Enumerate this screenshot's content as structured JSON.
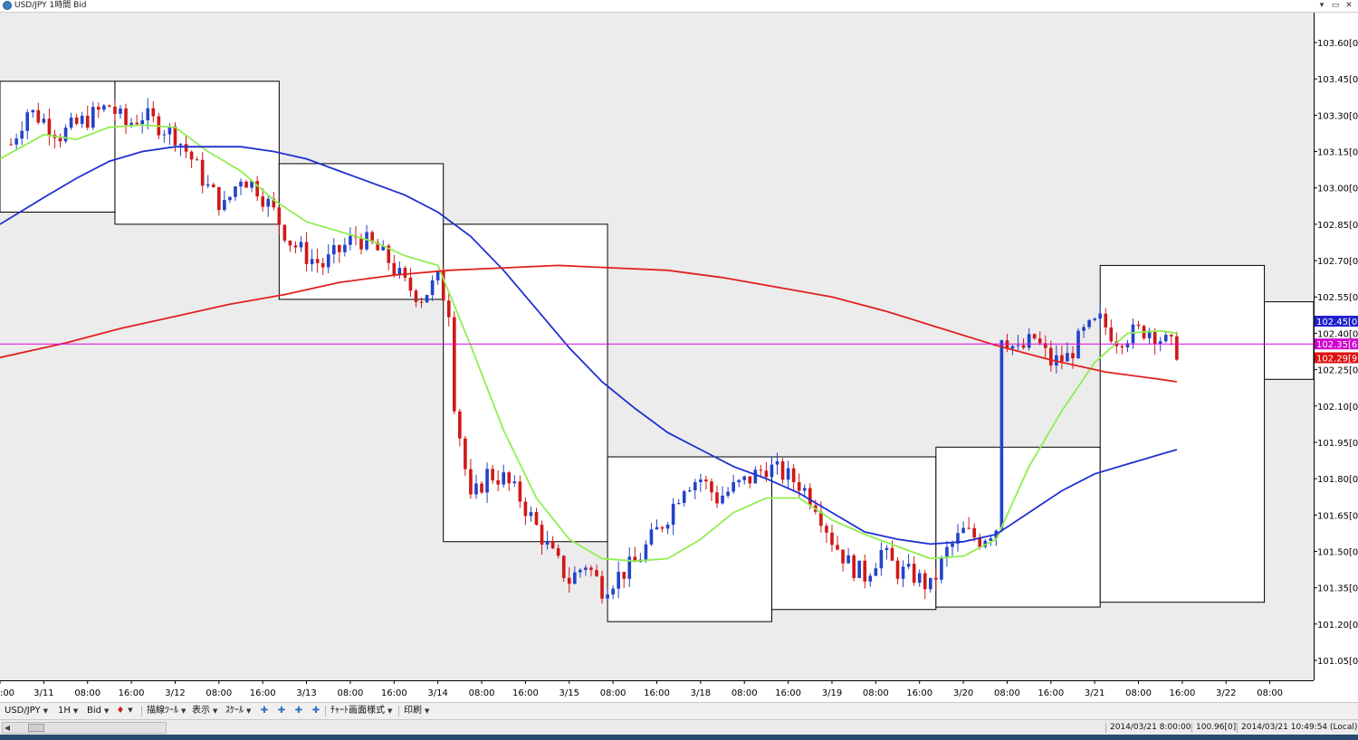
{
  "window": {
    "title": "USD/JPY 1時間 Bid",
    "controls": {
      "minimize": "▾",
      "restore": "▭",
      "close": "✕"
    }
  },
  "colors": {
    "up_candle": "#2343c8",
    "down_candle": "#d01818",
    "ma_fast": "#90ee50",
    "ma_mid": "#1f2fd0",
    "ma_long": "#e02020",
    "price_line": "#e000e0",
    "box": "#000000",
    "background": "#ececec"
  },
  "chart_data": {
    "type": "candlestick",
    "symbol": "USD/JPY",
    "timeframe": "1H",
    "price_type": "Bid",
    "y_axis": {
      "ticks": [
        "103.60[0]",
        "103.45[0]",
        "103.30[0]",
        "103.15[0]",
        "103.00[0]",
        "102.85[0]",
        "102.70[0]",
        "102.55[0]",
        "102.40[0]",
        "102.25[0]",
        "102.10[0]",
        "101.95[0]",
        "101.80[0]",
        "101.65[0]",
        "101.50[0]",
        "101.35[0]",
        "101.20[0]",
        "101.05[0]"
      ],
      "range": [
        101.0,
        103.65
      ]
    },
    "x_axis": {
      "ticks": [
        ":00",
        "3/11",
        "08:00",
        "16:00",
        "3/12",
        "08:00",
        "16:00",
        "3/13",
        "08:00",
        "16:00",
        "3/14",
        "08:00",
        "16:00",
        "3/15",
        "08:00",
        "16:00",
        "3/18",
        "08:00",
        "16:00",
        "3/19",
        "08:00",
        "16:00",
        "3/20",
        "08:00",
        "16:00",
        "3/21",
        "08:00",
        "16:00",
        "3/22",
        "08:00"
      ],
      "hours_per_tick": 8,
      "bar_index_range": [
        -2,
        238
      ]
    },
    "price_markers": [
      {
        "label": "102.45[0",
        "value": 102.45,
        "color": "#2020d0"
      },
      {
        "label": "102.35[6",
        "value": 102.356,
        "color": "#d000d0"
      },
      {
        "label": "102.29[9",
        "value": 102.299,
        "color": "#e01010"
      }
    ],
    "current_price_line": 102.356,
    "close_path": [
      [
        0,
        103.18
      ],
      [
        3,
        103.32
      ],
      [
        6,
        103.28
      ],
      [
        9,
        103.22
      ],
      [
        12,
        103.26
      ],
      [
        15,
        103.3
      ],
      [
        18,
        103.34
      ],
      [
        21,
        103.26
      ],
      [
        24,
        103.3
      ],
      [
        27,
        103.26
      ],
      [
        30,
        103.22
      ],
      [
        33,
        103.12
      ],
      [
        36,
        103.0
      ],
      [
        39,
        102.92
      ],
      [
        42,
        103.05
      ],
      [
        45,
        103.0
      ],
      [
        48,
        102.9
      ],
      [
        51,
        102.78
      ],
      [
        54,
        102.72
      ],
      [
        57,
        102.68
      ],
      [
        60,
        102.74
      ],
      [
        63,
        102.8
      ],
      [
        66,
        102.76
      ],
      [
        69,
        102.7
      ],
      [
        72,
        102.6
      ],
      [
        75,
        102.55
      ],
      [
        78,
        102.62
      ],
      [
        80,
        102.5
      ],
      [
        81,
        102.12
      ],
      [
        84,
        101.7
      ],
      [
        87,
        101.82
      ],
      [
        90,
        101.8
      ],
      [
        93,
        101.72
      ],
      [
        96,
        101.6
      ],
      [
        99,
        101.48
      ],
      [
        102,
        101.38
      ],
      [
        105,
        101.45
      ],
      [
        108,
        101.35
      ],
      [
        111,
        101.4
      ],
      [
        114,
        101.45
      ],
      [
        117,
        101.55
      ],
      [
        120,
        101.65
      ],
      [
        123,
        101.78
      ],
      [
        126,
        101.8
      ],
      [
        129,
        101.72
      ],
      [
        132,
        101.76
      ],
      [
        135,
        101.8
      ],
      [
        138,
        101.85
      ],
      [
        141,
        101.82
      ],
      [
        144,
        101.78
      ],
      [
        147,
        101.7
      ],
      [
        150,
        101.55
      ],
      [
        153,
        101.45
      ],
      [
        156,
        101.4
      ],
      [
        159,
        101.5
      ],
      [
        162,
        101.42
      ],
      [
        165,
        101.4
      ],
      [
        168,
        101.35
      ],
      [
        171,
        101.5
      ],
      [
        174,
        101.58
      ],
      [
        177,
        101.55
      ],
      [
        180,
        101.6
      ],
      [
        181,
        102.4
      ],
      [
        184,
        102.32
      ],
      [
        187,
        102.38
      ],
      [
        190,
        102.28
      ],
      [
        193,
        102.3
      ],
      [
        196,
        102.4
      ],
      [
        199,
        102.45
      ],
      [
        202,
        102.38
      ],
      [
        205,
        102.4
      ],
      [
        208,
        102.42
      ],
      [
        211,
        102.36
      ],
      [
        213,
        102.33
      ]
    ],
    "moving_averages": [
      {
        "color": "#90ee50",
        "points": [
          [
            -2,
            103.12
          ],
          [
            6,
            103.22
          ],
          [
            12,
            103.2
          ],
          [
            18,
            103.25
          ],
          [
            24,
            103.26
          ],
          [
            30,
            103.25
          ],
          [
            36,
            103.15
          ],
          [
            42,
            103.07
          ],
          [
            48,
            102.95
          ],
          [
            54,
            102.86
          ],
          [
            60,
            102.82
          ],
          [
            66,
            102.78
          ],
          [
            72,
            102.72
          ],
          [
            78,
            102.68
          ],
          [
            84,
            102.35
          ],
          [
            90,
            102.0
          ],
          [
            96,
            101.72
          ],
          [
            102,
            101.55
          ],
          [
            108,
            101.47
          ],
          [
            114,
            101.46
          ],
          [
            120,
            101.47
          ],
          [
            126,
            101.55
          ],
          [
            132,
            101.66
          ],
          [
            138,
            101.72
          ],
          [
            144,
            101.72
          ],
          [
            150,
            101.63
          ],
          [
            156,
            101.57
          ],
          [
            162,
            101.52
          ],
          [
            168,
            101.47
          ],
          [
            174,
            101.48
          ],
          [
            180,
            101.55
          ],
          [
            186,
            101.85
          ],
          [
            192,
            102.08
          ],
          [
            198,
            102.28
          ],
          [
            204,
            102.4
          ],
          [
            210,
            102.41
          ],
          [
            213,
            102.4
          ]
        ]
      },
      {
        "color": "#1f2fd0",
        "points": [
          [
            -2,
            102.85
          ],
          [
            6,
            102.96
          ],
          [
            12,
            103.04
          ],
          [
            18,
            103.11
          ],
          [
            24,
            103.15
          ],
          [
            30,
            103.17
          ],
          [
            36,
            103.17
          ],
          [
            42,
            103.17
          ],
          [
            48,
            103.15
          ],
          [
            54,
            103.12
          ],
          [
            60,
            103.07
          ],
          [
            66,
            103.02
          ],
          [
            72,
            102.97
          ],
          [
            78,
            102.9
          ],
          [
            84,
            102.8
          ],
          [
            90,
            102.66
          ],
          [
            96,
            102.5
          ],
          [
            102,
            102.34
          ],
          [
            108,
            102.2
          ],
          [
            114,
            102.09
          ],
          [
            120,
            101.99
          ],
          [
            126,
            101.92
          ],
          [
            132,
            101.85
          ],
          [
            138,
            101.8
          ],
          [
            144,
            101.74
          ],
          [
            150,
            101.66
          ],
          [
            156,
            101.58
          ],
          [
            162,
            101.55
          ],
          [
            168,
            101.53
          ],
          [
            174,
            101.54
          ],
          [
            180,
            101.57
          ],
          [
            186,
            101.66
          ],
          [
            192,
            101.75
          ],
          [
            198,
            101.82
          ],
          [
            204,
            101.86
          ],
          [
            210,
            101.9
          ],
          [
            213,
            101.92
          ]
        ]
      },
      {
        "color": "#e02020",
        "points": [
          [
            -2,
            102.3
          ],
          [
            10,
            102.36
          ],
          [
            20,
            102.42
          ],
          [
            30,
            102.47
          ],
          [
            40,
            102.52
          ],
          [
            50,
            102.56
          ],
          [
            60,
            102.61
          ],
          [
            70,
            102.64
          ],
          [
            80,
            102.66
          ],
          [
            90,
            102.67
          ],
          [
            100,
            102.68
          ],
          [
            110,
            102.67
          ],
          [
            120,
            102.66
          ],
          [
            130,
            102.63
          ],
          [
            140,
            102.59
          ],
          [
            150,
            102.55
          ],
          [
            160,
            102.49
          ],
          [
            170,
            102.42
          ],
          [
            180,
            102.35
          ],
          [
            190,
            102.29
          ],
          [
            200,
            102.24
          ],
          [
            210,
            102.21
          ],
          [
            213,
            102.2
          ]
        ]
      }
    ],
    "daily_boxes": [
      {
        "start": -2,
        "end": 19,
        "open": 103.25,
        "high": 103.44,
        "low": 102.9
      },
      {
        "start": 19,
        "end": 49,
        "open": 103.17,
        "high": 103.44,
        "low": 102.85
      },
      {
        "start": 49,
        "end": 79,
        "open": 102.54,
        "high": 103.1,
        "low": 102.54
      },
      {
        "start": 79,
        "end": 109,
        "open": 101.54,
        "high": 102.85,
        "low": 101.54
      },
      {
        "start": 109,
        "end": 139,
        "open": 101.89,
        "high": 101.89,
        "low": 101.21
      },
      {
        "start": 139,
        "end": 169,
        "open": 101.26,
        "high": 101.89,
        "low": 101.26
      },
      {
        "start": 169,
        "end": 199,
        "open": 101.27,
        "high": 101.93,
        "low": 101.27
      },
      {
        "start": 199,
        "end": 229,
        "open": 101.29,
        "high": 102.68,
        "low": 101.29
      },
      {
        "start": 229,
        "end": 259,
        "open": 102.53,
        "high": 102.53,
        "low": 102.21
      },
      {
        "start": 259,
        "end": 262,
        "open": 102.45,
        "high": 102.45,
        "low": 102.29
      }
    ]
  },
  "toolbar": {
    "items": [
      {
        "label": "USD/JPY",
        "dropdown": true
      },
      {
        "label": "1H",
        "dropdown": true
      },
      {
        "label": "Bid",
        "dropdown": true
      }
    ],
    "draw_tools_label": "描線ﾂｰﾙ",
    "view_label": "表示",
    "scale_label": "ｽｹｰﾙ",
    "chart_style_label": "ﾁｬｰﾄ画面様式",
    "print_label": "印刷",
    "icons": [
      "pin-icon",
      "zoom-in-icon",
      "zoom-out-icon",
      "crosshair-icon",
      "fit-icon"
    ]
  },
  "statusbar": {
    "cursor_time": "2014/03/21 8:00:00",
    "cursor_price": "100.96[0]",
    "clock": "2014/03/21 10:49:54 (Local)"
  }
}
